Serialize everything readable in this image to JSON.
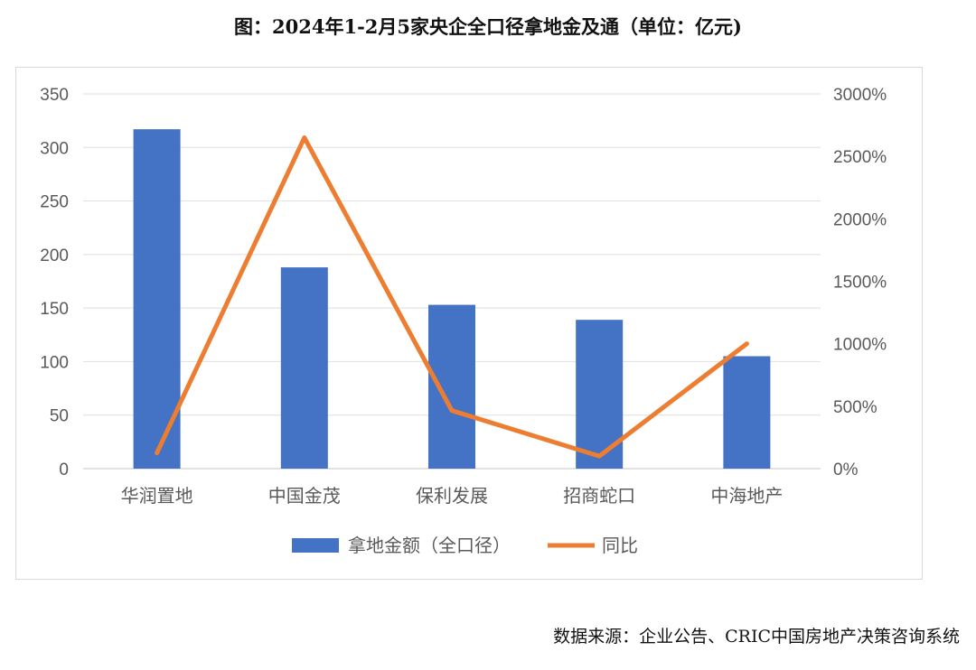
{
  "chart_data": {
    "type": "bar+line",
    "title": "图：2024年1-2月5家央企全口径拿地金及通（单位：亿元)",
    "categories": [
      "华润置地",
      "中国金茂",
      "保利发展",
      "招商蛇口",
      "中海地产"
    ],
    "series": [
      {
        "name": "拿地金额（全口径）",
        "type": "bar",
        "axis": "left",
        "color": "#4472C4",
        "values": [
          317,
          188,
          153,
          139,
          105
        ]
      },
      {
        "name": "同比",
        "type": "line",
        "axis": "right",
        "color": "#ED7D31",
        "values": [
          125,
          2650,
          465,
          100,
          1000
        ]
      }
    ],
    "left_axis": {
      "ylim": [
        0,
        350
      ],
      "ticks": [
        "0",
        "50",
        "100",
        "150",
        "200",
        "250",
        "300",
        "350"
      ]
    },
    "right_axis": {
      "ylim": [
        0,
        3000
      ],
      "ticks": [
        "0%",
        "500%",
        "1000%",
        "1500%",
        "2000%",
        "2500%",
        "3000%"
      ]
    },
    "grid": true,
    "legend": "bottom"
  },
  "source": "数据来源：企业公告、CRIC中国房地产决策咨询系统"
}
